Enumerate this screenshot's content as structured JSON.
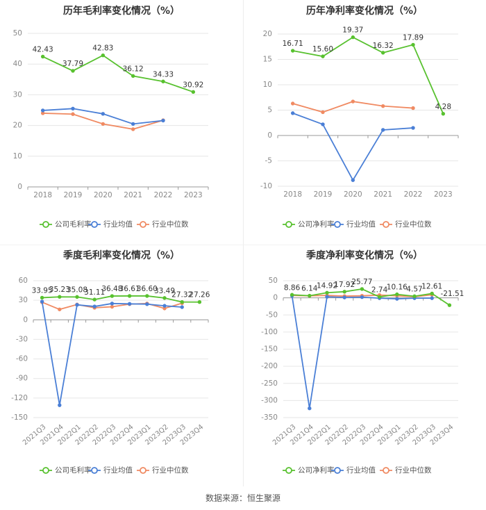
{
  "source": "数据来源：恒生聚源",
  "colors": {
    "company": "#58c12f",
    "industry_avg": "#4a7fd6",
    "industry_median": "#f08a62",
    "grid": "#e6e6e6",
    "axis": "#999999",
    "tick_text": "#888888",
    "title": "#333333"
  },
  "chart_data": [
    {
      "type": "line",
      "title": "历年毛利率变化情况（%）",
      "categories": [
        "2018",
        "2019",
        "2020",
        "2021",
        "2022",
        "2023"
      ],
      "ylim": [
        0,
        50
      ],
      "yticks": [
        0,
        10,
        20,
        30,
        40,
        50
      ],
      "series": [
        {
          "name": "公司毛利率",
          "values": [
            42.43,
            37.79,
            42.83,
            36.12,
            34.33,
            30.92
          ],
          "labels": [
            "42.43",
            "37.79",
            "42.83",
            "36.12",
            "34.33",
            "30.92"
          ]
        },
        {
          "name": "行业均值",
          "values": [
            24.9,
            25.5,
            23.8,
            20.5,
            21.6,
            null
          ]
        },
        {
          "name": "行业中位数",
          "values": [
            24.0,
            23.7,
            20.5,
            18.8,
            21.7,
            null
          ]
        }
      ],
      "legend_position": "bottom",
      "grid": true
    },
    {
      "type": "line",
      "title": "历年净利率变化情况（%）",
      "categories": [
        "2018",
        "2019",
        "2020",
        "2021",
        "2022",
        "2023"
      ],
      "ylim": [
        -10,
        20
      ],
      "yticks": [
        -10,
        -5,
        0,
        5,
        10,
        15,
        20
      ],
      "series": [
        {
          "name": "公司净利率",
          "values": [
            16.71,
            15.6,
            19.37,
            16.32,
            17.89,
            4.28
          ],
          "labels": [
            "16.71",
            "15.60",
            "19.37",
            "16.32",
            "17.89",
            "4.28"
          ]
        },
        {
          "name": "行业均值",
          "values": [
            4.4,
            2.2,
            -8.8,
            1.1,
            1.5,
            null
          ]
        },
        {
          "name": "行业中位数",
          "values": [
            6.3,
            4.6,
            6.7,
            5.8,
            5.4,
            null
          ]
        }
      ],
      "legend_position": "bottom",
      "grid": true
    },
    {
      "type": "line",
      "title": "季度毛利率变化情况（%）",
      "categories": [
        "2021Q3",
        "2021Q4",
        "2022Q1",
        "2022Q2",
        "2022Q3",
        "2022Q4",
        "2023Q1",
        "2023Q2",
        "2023Q3",
        "2023Q4"
      ],
      "ylim": [
        -150,
        60
      ],
      "yticks": [
        -150,
        -120,
        -90,
        -60,
        -30,
        0,
        30,
        60
      ],
      "series": [
        {
          "name": "公司毛利率",
          "values": [
            33.95,
            35.23,
            35.08,
            31.11,
            36.48,
            36.61,
            36.6,
            33.49,
            27.32,
            27.26
          ],
          "labels": [
            "33.95",
            "35.23",
            "35.08",
            "31.11",
            "36.48",
            "36.61",
            "36.60",
            "33.49",
            "27.32",
            "27.26"
          ]
        },
        {
          "name": "行业均值",
          "values": [
            28.0,
            -131.0,
            23.0,
            20.5,
            25.0,
            24.5,
            24.0,
            21.5,
            19.5,
            null
          ]
        },
        {
          "name": "行业中位数",
          "values": [
            27.0,
            16.0,
            23.5,
            18.5,
            20.0,
            24.0,
            25.0,
            17.5,
            25.5,
            null
          ]
        }
      ],
      "legend_position": "bottom",
      "grid": true
    },
    {
      "type": "line",
      "title": "季度净利率变化情况（%）",
      "categories": [
        "2021Q3",
        "2021Q4",
        "2022Q1",
        "2022Q2",
        "2022Q3",
        "2022Q4",
        "2023Q1",
        "2023Q2",
        "2023Q3",
        "2023Q4"
      ],
      "ylim": [
        -350,
        50
      ],
      "yticks": [
        -350,
        -300,
        -250,
        -200,
        -150,
        -100,
        -50,
        0,
        50
      ],
      "series": [
        {
          "name": "公司净利率",
          "values": [
            8.86,
            6.14,
            14.92,
            17.92,
            25.77,
            2.74,
            10.16,
            4.57,
            12.61,
            -21.51
          ],
          "labels": [
            "8.86",
            "6.14",
            "14.92",
            "17.92",
            "25.77",
            "2.74",
            "10.16",
            "4.57",
            "12.61",
            "-21.51"
          ]
        },
        {
          "name": "行业均值",
          "values": [
            6.0,
            -323.0,
            3.0,
            1.0,
            2.0,
            -1.0,
            -3.0,
            -1.0,
            -1.0,
            null
          ]
        },
        {
          "name": "行业中位数",
          "values": [
            7.0,
            6.0,
            7.0,
            5.0,
            6.0,
            8.0,
            6.0,
            3.0,
            9.0,
            null
          ]
        }
      ],
      "legend_position": "bottom",
      "grid": true
    }
  ]
}
